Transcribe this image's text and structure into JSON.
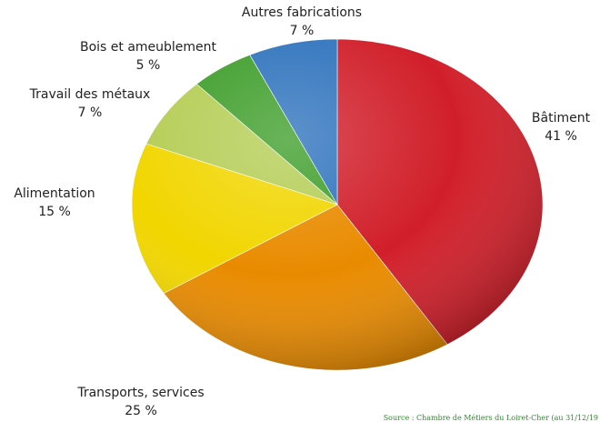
{
  "chart_data": {
    "type": "pie",
    "title": "",
    "start_angle_deg": 0,
    "direction": "clockwise",
    "slices": [
      {
        "label": "Bâtiment",
        "value": 41,
        "value_label": "41 %",
        "color": "#d11f2a"
      },
      {
        "label": "Transports, services",
        "value": 25,
        "value_label": "25 %",
        "color": "#e98b00"
      },
      {
        "label": "Alimentation",
        "value": 15,
        "value_label": "15 %",
        "color": "#f1d600"
      },
      {
        "label": "Travail des métaux",
        "value": 7,
        "value_label": "7 %",
        "color": "#b5cd55"
      },
      {
        "label": "Bois et ameublement",
        "value": 5,
        "value_label": "5 %",
        "color": "#3f9e2b"
      },
      {
        "label": "Autres fabrications",
        "value": 7,
        "value_label": "7 %",
        "color": "#2f73bd"
      }
    ],
    "legend": "none",
    "source": "Source : Chambre de Métiers du Loiret-Cher (au 31/12/19"
  }
}
